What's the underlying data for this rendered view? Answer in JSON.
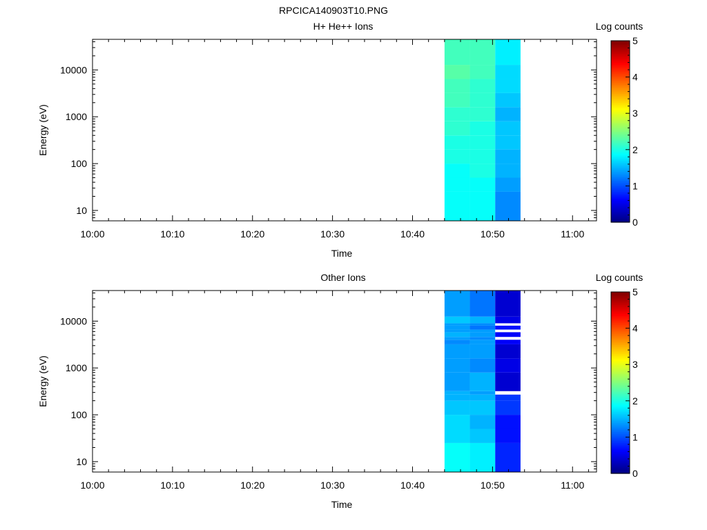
{
  "figure_title": "RPCICA140903T10.PNG",
  "chart_data": [
    {
      "type": "heatmap",
      "title": "H+ He++ Ions",
      "xlabel": "Time",
      "ylabel": "Energy (eV)",
      "y_scale": "log",
      "xlim": [
        "10:00",
        "11:03"
      ],
      "ylim": [
        6,
        45000
      ],
      "x_ticks": [
        "10:00",
        "10:10",
        "10:20",
        "10:30",
        "10:40",
        "10:50",
        "11:00"
      ],
      "y_ticks": [
        "10",
        "100",
        "1000",
        "10000"
      ],
      "colorbar": {
        "label": "Log counts",
        "range": [
          0,
          5
        ],
        "ticks": [
          "0",
          "1",
          "2",
          "3",
          "4",
          "5"
        ],
        "colormap": "jet"
      },
      "time_bins": [
        {
          "start": "10:44:00",
          "end": "10:47:10"
        },
        {
          "start": "10:47:10",
          "end": "10:50:20"
        },
        {
          "start": "10:50:20",
          "end": "10:53:30"
        }
      ],
      "energy_bins": [
        {
          "lo": 6,
          "hi": 25,
          "values": [
            1.9,
            1.9,
            1.3
          ]
        },
        {
          "lo": 25,
          "hi": 50,
          "values": [
            1.9,
            1.9,
            1.4
          ]
        },
        {
          "lo": 50,
          "hi": 100,
          "values": [
            1.9,
            2.0,
            1.5
          ]
        },
        {
          "lo": 100,
          "hi": 200,
          "values": [
            2.0,
            2.0,
            1.5
          ]
        },
        {
          "lo": 200,
          "hi": 400,
          "values": [
            2.0,
            2.0,
            1.6
          ]
        },
        {
          "lo": 400,
          "hi": 800,
          "values": [
            2.1,
            2.0,
            1.6
          ]
        },
        {
          "lo": 800,
          "hi": 1600,
          "values": [
            2.1,
            2.1,
            1.5
          ]
        },
        {
          "lo": 1600,
          "hi": 3200,
          "values": [
            2.2,
            2.1,
            1.6
          ]
        },
        {
          "lo": 3200,
          "hi": 6400,
          "values": [
            2.2,
            2.1,
            1.7
          ]
        },
        {
          "lo": 6400,
          "hi": 12800,
          "values": [
            2.3,
            2.2,
            1.7
          ]
        },
        {
          "lo": 12800,
          "hi": 45000,
          "values": [
            2.2,
            2.2,
            1.8
          ]
        }
      ]
    },
    {
      "type": "heatmap",
      "title": "Other Ions",
      "xlabel": "Time",
      "ylabel": "Energy (eV)",
      "y_scale": "log",
      "xlim": [
        "10:00",
        "11:03"
      ],
      "ylim": [
        6,
        45000
      ],
      "x_ticks": [
        "10:00",
        "10:10",
        "10:20",
        "10:30",
        "10:40",
        "10:50",
        "11:00"
      ],
      "y_ticks": [
        "10",
        "100",
        "1000",
        "10000"
      ],
      "colorbar": {
        "label": "Log counts",
        "range": [
          0,
          5
        ],
        "ticks": [
          "0",
          "1",
          "2",
          "3",
          "4",
          "5"
        ],
        "colormap": "jet"
      },
      "time_bins": [
        {
          "start": "10:44:00",
          "end": "10:47:10"
        },
        {
          "start": "10:47:10",
          "end": "10:50:20"
        },
        {
          "start": "10:50:20",
          "end": "10:53:30"
        }
      ],
      "energy_bins": [
        {
          "lo": 6,
          "hi": 25,
          "values": [
            1.9,
            1.8,
            0.8
          ]
        },
        {
          "lo": 25,
          "hi": 50,
          "values": [
            1.7,
            1.6,
            0.7
          ]
        },
        {
          "lo": 50,
          "hi": 100,
          "values": [
            1.7,
            1.5,
            0.7
          ]
        },
        {
          "lo": 100,
          "hi": 200,
          "values": [
            1.6,
            1.6,
            0.9
          ]
        },
        {
          "lo": 200,
          "hi": 270,
          "values": [
            1.5,
            1.5,
            0.9
          ]
        },
        {
          "lo": 270,
          "hi": 320,
          "values": [
            1.5,
            1.4,
            null
          ]
        },
        {
          "lo": 320,
          "hi": 800,
          "values": [
            1.4,
            1.5,
            0.4
          ]
        },
        {
          "lo": 800,
          "hi": 1600,
          "values": [
            1.4,
            1.3,
            0.5
          ]
        },
        {
          "lo": 1600,
          "hi": 3200,
          "values": [
            1.4,
            1.4,
            0.4
          ]
        },
        {
          "lo": 3200,
          "hi": 4000,
          "values": [
            1.3,
            1.4,
            0.6
          ]
        },
        {
          "lo": 4000,
          "hi": 4600,
          "values": [
            1.4,
            1.3,
            null
          ]
        },
        {
          "lo": 4600,
          "hi": 5800,
          "values": [
            1.5,
            1.4,
            0.6
          ]
        },
        {
          "lo": 5800,
          "hi": 6600,
          "values": [
            1.4,
            1.4,
            null
          ]
        },
        {
          "lo": 6600,
          "hi": 8000,
          "values": [
            1.4,
            1.2,
            0.7
          ]
        },
        {
          "lo": 8000,
          "hi": 9000,
          "values": [
            1.4,
            1.3,
            null
          ]
        },
        {
          "lo": 9000,
          "hi": 12500,
          "values": [
            1.6,
            1.5,
            0.5
          ]
        },
        {
          "lo": 12500,
          "hi": 45000,
          "values": [
            1.4,
            1.2,
            0.4
          ]
        }
      ]
    }
  ]
}
